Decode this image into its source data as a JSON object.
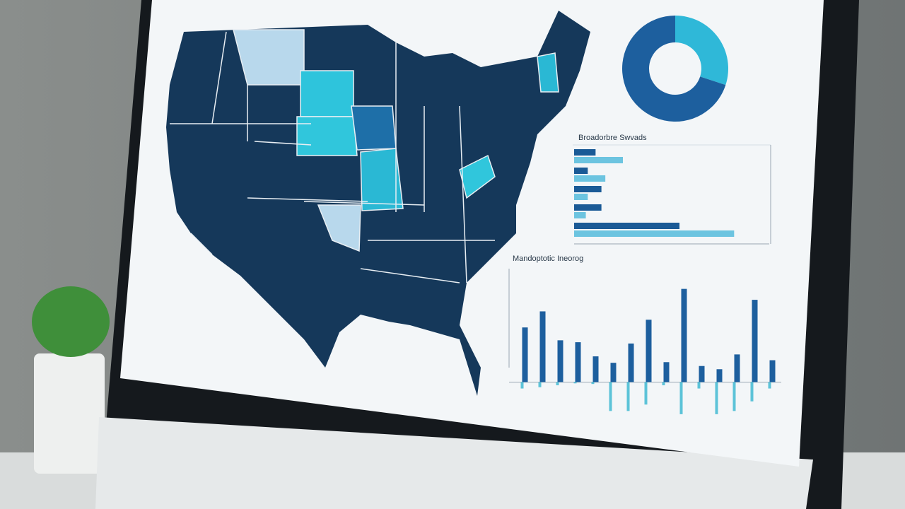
{
  "dashboard": {
    "bar_chart": {
      "type": "bar",
      "orientation": "horizontal",
      "title": "Broadorbre Swvads",
      "categories": [
        null,
        null,
        null,
        null,
        null
      ],
      "series": [
        {
          "color": "#1a5a96",
          "values": [
            11,
            7,
            14,
            14,
            54
          ]
        },
        {
          "color": "#6cc4e0",
          "values": [
            25,
            16,
            7,
            6,
            82
          ]
        }
      ],
      "xlim": [
        0,
        100
      ]
    },
    "column_chart": {
      "type": "bar",
      "orientation": "vertical",
      "title": "Mandoptotic Ineorog",
      "categories": [
        null,
        null,
        null,
        null,
        null,
        null,
        null,
        null,
        null,
        null,
        null,
        null,
        null,
        null,
        null
      ],
      "series": [
        {
          "color": "#1d5f9e",
          "values": [
            85,
            110,
            65,
            62,
            40,
            30,
            60,
            97,
            31,
            145,
            25,
            20,
            43,
            128,
            34
          ]
        },
        {
          "color": "#5cc3d8",
          "values": [
            -10,
            -8,
            -5,
            -2,
            -3,
            -45,
            -45,
            -35,
            -5,
            -50,
            -10,
            -50,
            -45,
            -30,
            -10
          ]
        }
      ],
      "ylim": [
        -60,
        160
      ]
    },
    "donut_chart": {
      "type": "pie",
      "series": [
        {
          "color": "#1d5f9e",
          "value": 70
        },
        {
          "color": "#2fb8d8",
          "value": 30
        }
      ]
    }
  }
}
